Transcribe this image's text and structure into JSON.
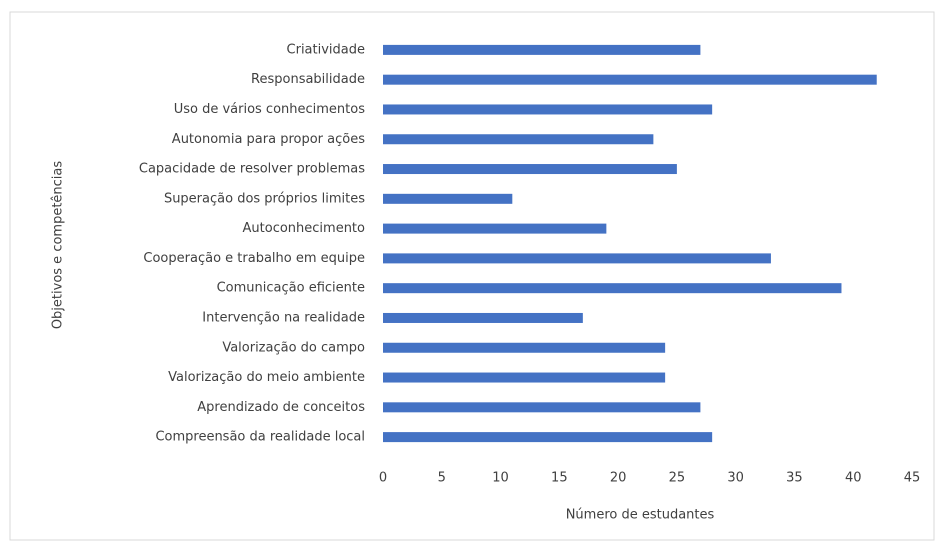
{
  "chart_data": {
    "type": "bar",
    "orientation": "horizontal",
    "x_label": "Número de estudantes",
    "y_label": "Objetivos e competências",
    "categories": [
      "Criatividade",
      "Responsabilidade",
      "Uso de vários conhecimentos",
      "Autonomia para propor ações",
      "Capacidade de resolver problemas",
      "Superação dos próprios limites",
      "Autoconhecimento",
      "Cooperação e trabalho em equipe",
      "Comunicação eficiente",
      "Intervenção na realidade",
      "Valorização do campo",
      "Valorização do meio ambiente",
      "Aprendizado de conceitos",
      "Compreensão da realidade local"
    ],
    "values": [
      27,
      42,
      28,
      23,
      25,
      11,
      19,
      33,
      39,
      17,
      24,
      24,
      27,
      28
    ],
    "color": "#4472c4",
    "xlim": [
      0,
      45
    ],
    "xticks": [
      0,
      5,
      10,
      15,
      20,
      25,
      30,
      35,
      40,
      45
    ],
    "grid": false
  }
}
